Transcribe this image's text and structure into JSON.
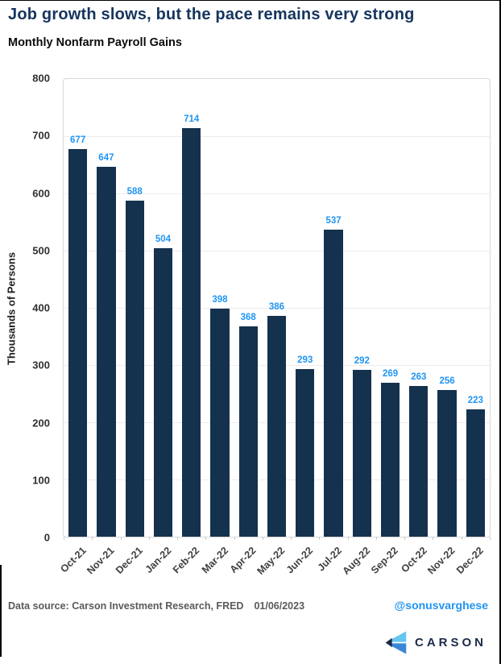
{
  "header": {
    "title": "Job growth slows, but the pace remains very strong",
    "subtitle": "Monthly Nonfarm Payroll Gains"
  },
  "chart_data": {
    "type": "bar",
    "title": "Monthly Nonfarm Payroll Gains",
    "categories": [
      "Oct-21",
      "Nov-21",
      "Dec-21",
      "Jan-22",
      "Feb-22",
      "Mar-22",
      "Apr-22",
      "May-22",
      "Jun-22",
      "Jul-22",
      "Aug-22",
      "Sep-22",
      "Oct-22",
      "Nov-22",
      "Dec-22"
    ],
    "values": [
      677,
      647,
      588,
      504,
      714,
      398,
      368,
      386,
      293,
      537,
      292,
      269,
      263,
      256,
      223
    ],
    "xlabel": "",
    "ylabel": "Thousands of Persons",
    "ylim": [
      0,
      800
    ],
    "ytick_step": 100,
    "grid": true,
    "legend": "none",
    "bar_color": "#14324E",
    "value_label_color": "#2095F3"
  },
  "footer": {
    "source": "Data source: Carson Investment Research, FRED",
    "date": "01/06/2023",
    "handle": "@sonusvarghese",
    "logo_text": "CARSON"
  },
  "colors": {
    "title": "#16355E",
    "bar": "#14324E",
    "value_label": "#2095F3",
    "handle": "#2095F3",
    "logo_light_blue": "#66C5F0",
    "logo_mid_blue": "#3A87D8",
    "logo_navy": "#1B2B4A"
  }
}
